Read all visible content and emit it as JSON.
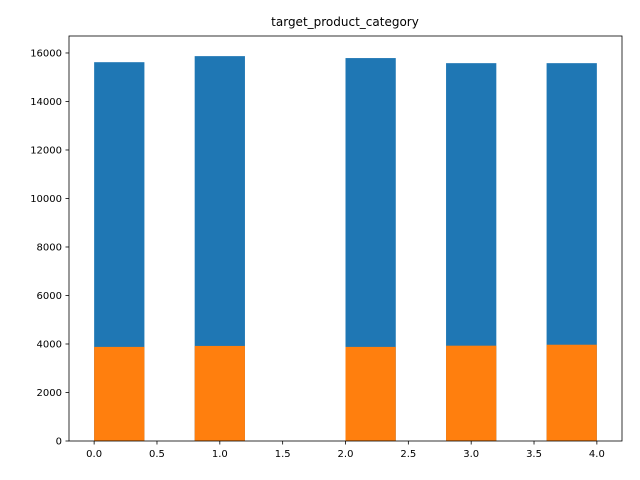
{
  "chart_data": {
    "type": "bar",
    "title": "target_product_category",
    "xlabel": "",
    "ylabel": "",
    "xlim": [
      -0.2,
      4.2
    ],
    "ylim": [
      0,
      16700
    ],
    "bar_width": 0.4,
    "x_ticks": [
      0.0,
      0.5,
      1.0,
      1.5,
      2.0,
      2.5,
      3.0,
      3.5,
      4.0
    ],
    "x_tick_labels": [
      "0.0",
      "0.5",
      "1.0",
      "1.5",
      "2.0",
      "2.5",
      "3.0",
      "3.5",
      "4.0"
    ],
    "y_ticks": [
      0,
      2000,
      4000,
      6000,
      8000,
      10000,
      12000,
      14000,
      16000
    ],
    "y_tick_labels": [
      "0",
      "2000",
      "4000",
      "6000",
      "8000",
      "10000",
      "12000",
      "14000",
      "16000"
    ],
    "grid": false,
    "legend": false,
    "series": [
      {
        "color": "#1f77b4",
        "x": [
          0.0,
          0.8,
          2.0,
          2.8,
          3.6
        ],
        "values": [
          15620,
          15870,
          15790,
          15580,
          15580
        ]
      },
      {
        "color": "#ff7f0e",
        "x": [
          0.0,
          0.8,
          2.0,
          2.8,
          3.6
        ],
        "values": [
          3880,
          3920,
          3880,
          3930,
          3970
        ]
      }
    ]
  }
}
